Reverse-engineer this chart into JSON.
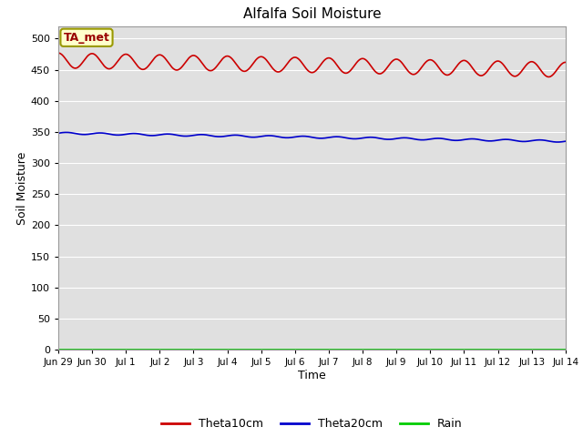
{
  "title": "Alfalfa Soil Moisture",
  "xlabel": "Time",
  "ylabel": "Soil Moisture",
  "annotation_text": "TA_met",
  "annotation_bg": "#ffffcc",
  "annotation_border": "#999900",
  "annotation_text_color": "#990000",
  "ylim": [
    0,
    520
  ],
  "yticks": [
    0,
    50,
    100,
    150,
    200,
    250,
    300,
    350,
    400,
    450,
    500
  ],
  "xtick_labels": [
    "Jun 29",
    "Jun 30",
    "Jul 1",
    "Jul 2",
    "Jul 3",
    "Jul 4",
    "Jul 5",
    "Jul 6",
    "Jul 7",
    "Jul 8",
    "Jul 9",
    "Jul 10",
    "Jul 11",
    "Jul 12",
    "Jul 13",
    "Jul 14"
  ],
  "theta10_color": "#cc0000",
  "theta20_color": "#0000cc",
  "rain_color": "#00cc00",
  "background_color": "#e0e0e0",
  "grid_color": "#ffffff",
  "legend_labels": [
    "Theta10cm",
    "Theta20cm",
    "Rain"
  ],
  "legend_colors": [
    "#cc0000",
    "#0000cc",
    "#00cc00"
  ],
  "figsize": [
    6.4,
    4.8
  ],
  "dpi": 100
}
